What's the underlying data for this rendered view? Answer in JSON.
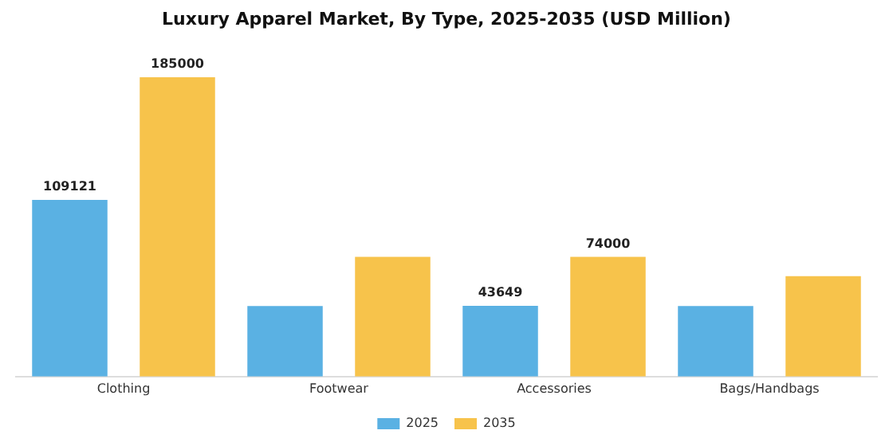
{
  "chart_data": {
    "type": "bar",
    "title": "Luxury Apparel Market, By Type, 2025-2035 (USD Million)",
    "categories": [
      "Clothing",
      "Footwear",
      "Accessories",
      "Bags/Handbags"
    ],
    "series": [
      {
        "name": "2025",
        "color": "#5ab1e3",
        "values": [
          109121,
          43600,
          43649,
          43600
        ],
        "value_labels": [
          "109121",
          null,
          "43649",
          null
        ]
      },
      {
        "name": "2035",
        "color": "#f7c34b",
        "values": [
          185000,
          74000,
          74000,
          62000
        ],
        "value_labels": [
          "185000",
          null,
          "74000",
          null
        ]
      }
    ],
    "grid": false,
    "legend": "bottom"
  }
}
